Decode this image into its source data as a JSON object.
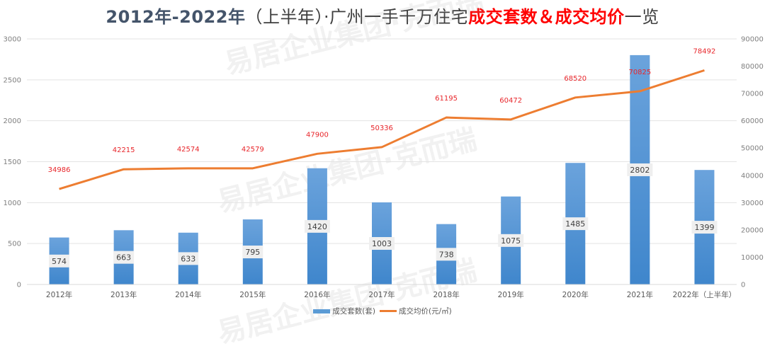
{
  "title": {
    "part1": "2012年-2022年",
    "part2": "（上半年）·广州一手千万住宅",
    "part3": "成交套数＆成交均价",
    "part4": "一览"
  },
  "watermark": {
    "text1": "易居企业集团·克而瑞",
    "text2": "易居企业集团·克而瑞",
    "text3": "易居企业集团·克而瑞"
  },
  "colors": {
    "bar_top": "#6ba3dc",
    "bar_bottom": "#3f86cc",
    "line": "#ed7d31",
    "line_label": "#e8262b",
    "bar_label_bg": "#efefef",
    "grid": "#e3e3e3"
  },
  "legend": {
    "bar": "成交套数(套)",
    "line": "成交均价(元/㎡)"
  },
  "chart_data": {
    "type": "bar+line",
    "title": "2012年-2022年（上半年）·广州一手千万住宅成交套数＆成交均价一览",
    "categories": [
      "2012年",
      "2013年",
      "2014年",
      "2015年",
      "2016年",
      "2017年",
      "2018年",
      "2019年",
      "2020年",
      "2021年",
      "2022年（上半年）"
    ],
    "series": [
      {
        "name": "成交套数(套)",
        "type": "bar",
        "axis": "left",
        "values": [
          574,
          663,
          633,
          795,
          1420,
          1003,
          738,
          1075,
          1485,
          2802,
          1399
        ]
      },
      {
        "name": "成交均价(元/㎡)",
        "type": "line",
        "axis": "right",
        "values": [
          34986,
          42215,
          42574,
          42579,
          47900,
          50336,
          61195,
          60472,
          68520,
          70825,
          78492
        ]
      }
    ],
    "left_axis": {
      "ylim": [
        0,
        3000
      ],
      "ticks": [
        "0",
        "500",
        "1000",
        "1500",
        "2000",
        "2500",
        "3000"
      ]
    },
    "right_axis": {
      "ylim": [
        0,
        90000
      ],
      "ticks": [
        "0",
        "10000",
        "20000",
        "30000",
        "40000",
        "50000",
        "60000",
        "70000",
        "80000",
        "90000"
      ]
    },
    "xlabel": "",
    "ylabel": "",
    "grid": true,
    "legend_position": "bottom"
  }
}
